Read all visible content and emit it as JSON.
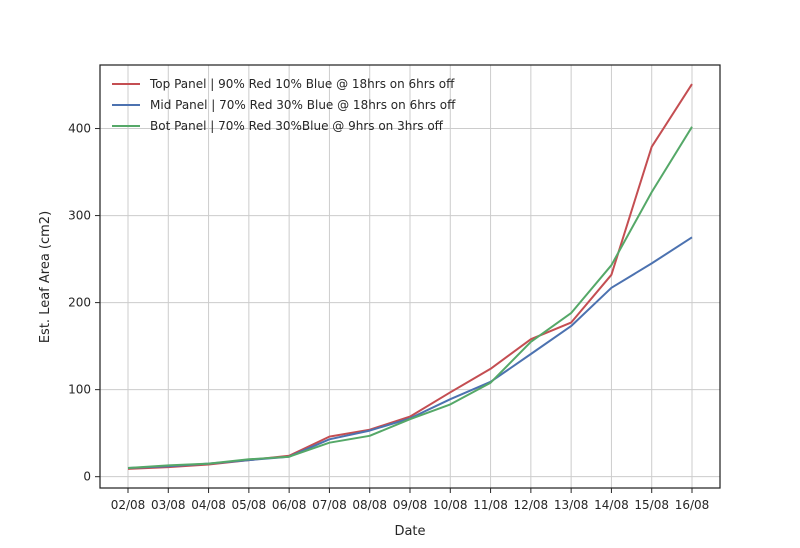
{
  "chart_data": {
    "type": "line",
    "title": "",
    "xlabel": "Date",
    "ylabel": "Est. Leaf Area (cm2)",
    "categories": [
      "02/08",
      "03/08",
      "04/08",
      "05/08",
      "06/08",
      "07/08",
      "08/08",
      "09/08",
      "10/08",
      "11/08",
      "12/08",
      "13/08",
      "14/08",
      "15/08",
      "16/08"
    ],
    "ylim": [
      -13,
      473
    ],
    "yticks": [
      0,
      100,
      200,
      300,
      400
    ],
    "grid": true,
    "legend_position": "top-left",
    "series": [
      {
        "name": "Top Panel | 90% Red 10% Blue @ 18hrs on 6hrs off",
        "color": "#c44e52",
        "values": [
          9,
          11,
          14,
          19,
          24,
          46,
          54,
          69,
          97,
          124,
          158,
          177,
          232,
          379,
          451
        ]
      },
      {
        "name": "Mid Panel | 70% Red 30% Blue @ 18hrs on 6hrs off",
        "color": "#4c72b0",
        "values": [
          10,
          12,
          15,
          19,
          23,
          43,
          53,
          67,
          89,
          109,
          141,
          173,
          217,
          245,
          275
        ]
      },
      {
        "name": "Bot Panel | 70% Red 30%Blue @ 9hrs on 3hrs off",
        "color": "#55a868",
        "values": [
          10,
          13,
          15,
          20,
          23,
          39,
          47,
          66,
          83,
          108,
          155,
          188,
          243,
          327,
          402
        ]
      }
    ]
  }
}
